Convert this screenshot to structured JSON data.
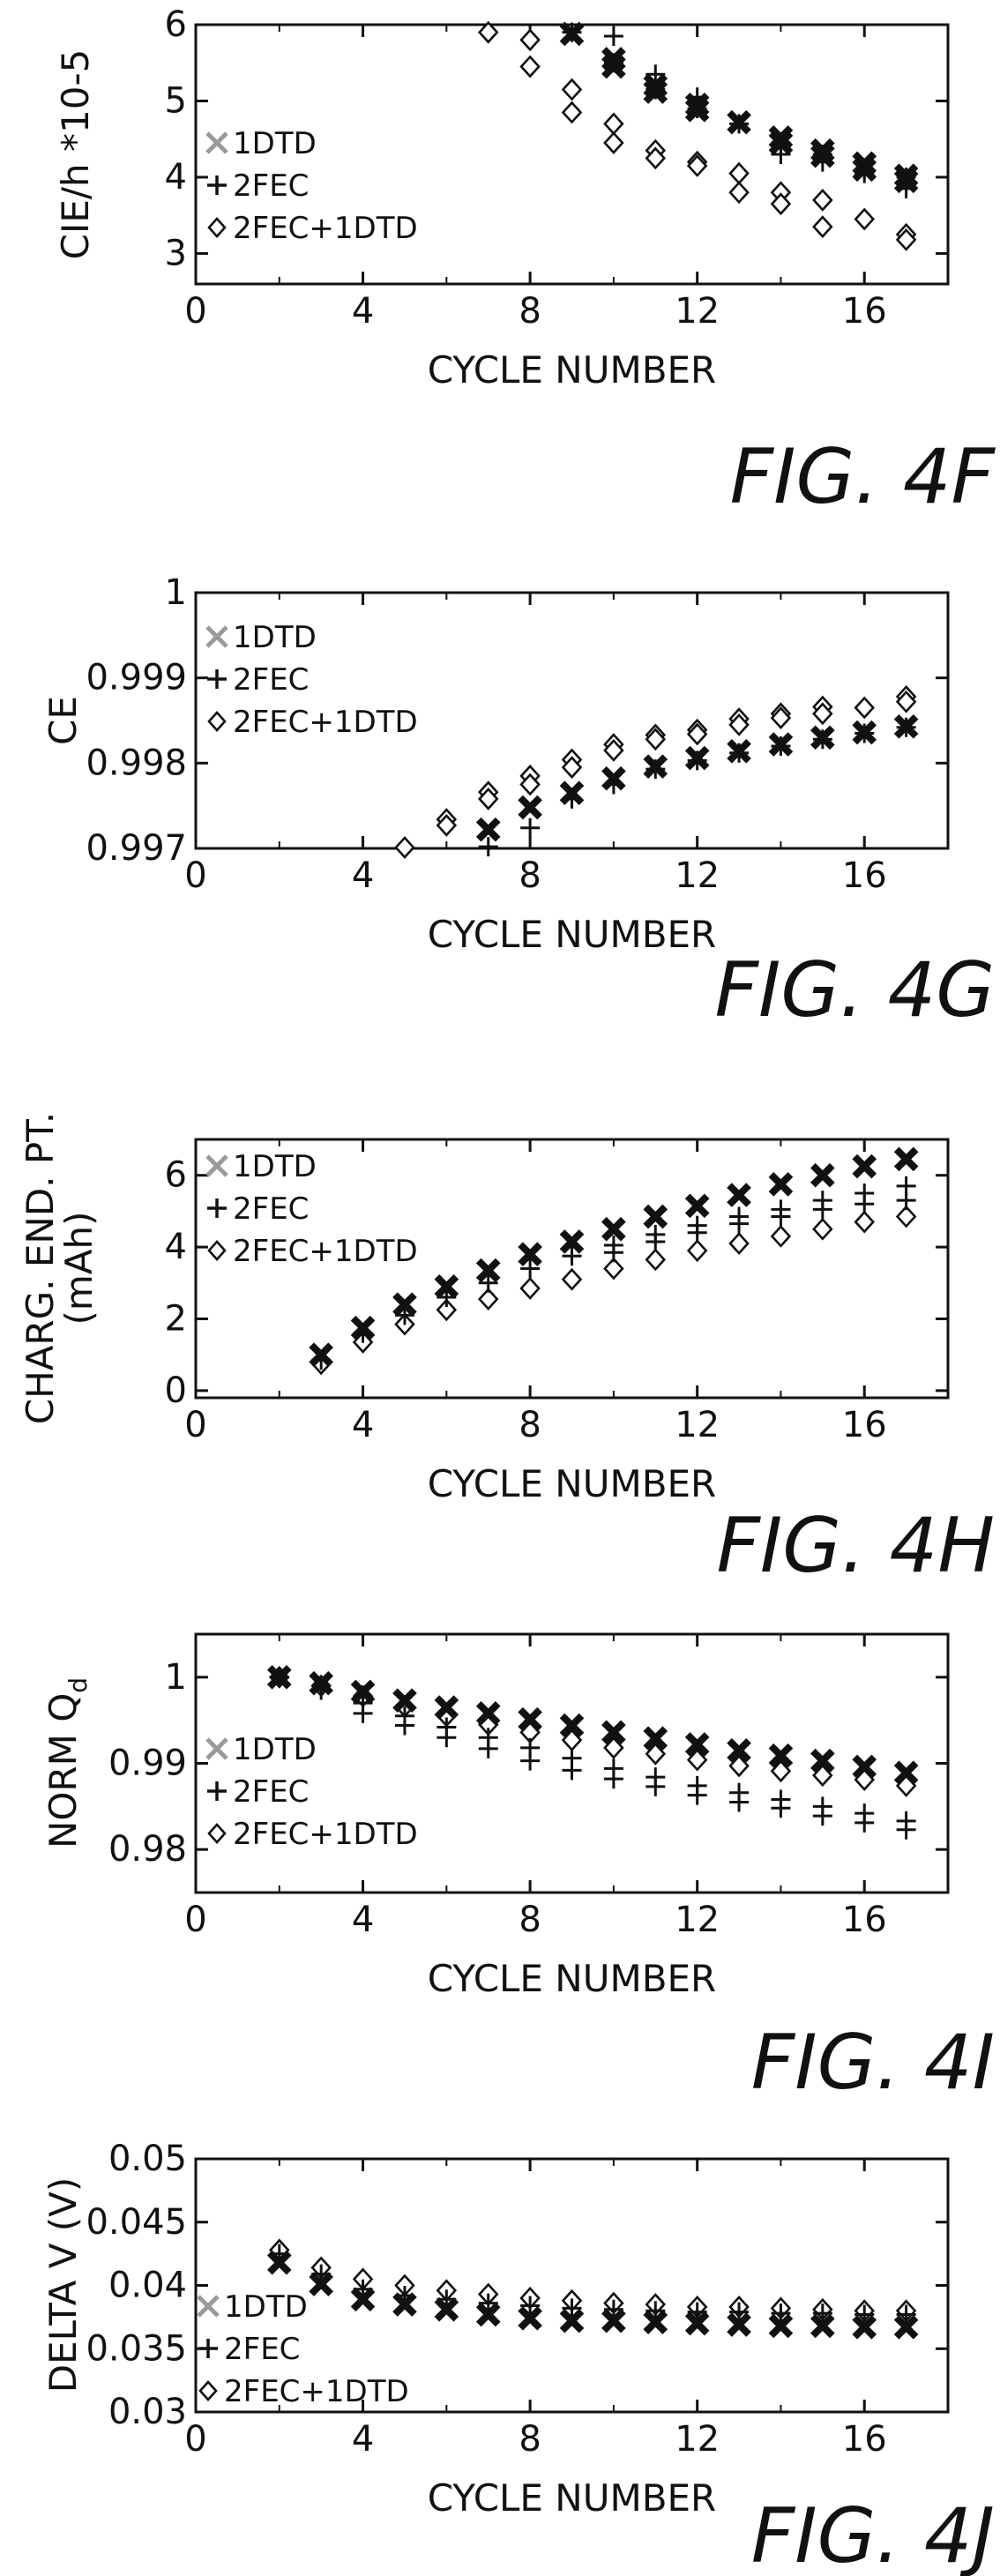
{
  "figure_captions": [
    "FIG. 4F",
    "FIG. 4G",
    "FIG. 4H",
    "FIG. 4I",
    "FIG. 4J"
  ],
  "chart_data": [
    {
      "type": "scatter",
      "caption": "FIG. 4F",
      "xlabel": "CYCLE NUMBER",
      "ylabel": "CIE/h *10-5",
      "xlim": [
        0,
        18
      ],
      "ylim": [
        2.6,
        6
      ],
      "xticks": [
        0,
        4,
        8,
        12,
        16
      ],
      "yticks": [
        3,
        4,
        5,
        6
      ],
      "ytick_labels": [
        "3",
        "4",
        "5",
        "6"
      ],
      "legend_position": "left",
      "series": [
        {
          "name": "1DTD",
          "marker": "x-gray",
          "x": [
            9,
            10,
            10,
            11,
            11,
            12,
            12,
            13,
            14,
            14,
            15,
            15,
            16,
            16,
            17,
            17
          ],
          "y": [
            5.88,
            5.55,
            5.45,
            5.2,
            5.12,
            4.95,
            4.88,
            4.72,
            4.52,
            4.45,
            4.35,
            4.28,
            4.18,
            4.1,
            4.02,
            3.95
          ]
        },
        {
          "name": "2FEC",
          "marker": "plus",
          "x": [
            9,
            10,
            10,
            11,
            11,
            12,
            12,
            13,
            14,
            14,
            15,
            15,
            16,
            16,
            17,
            17
          ],
          "y": [
            5.9,
            5.85,
            5.5,
            5.35,
            5.15,
            5.05,
            4.9,
            4.7,
            4.45,
            4.3,
            4.3,
            4.2,
            4.1,
            4.05,
            4.0,
            3.85
          ]
        },
        {
          "name": "2FEC+1DTD",
          "marker": "diamond",
          "x": [
            7,
            8,
            8,
            9,
            9,
            10,
            10,
            11,
            11,
            12,
            12,
            13,
            13,
            14,
            14,
            15,
            15,
            16,
            17,
            17
          ],
          "y": [
            5.9,
            5.8,
            5.45,
            5.15,
            4.85,
            4.7,
            4.45,
            4.35,
            4.25,
            4.2,
            4.15,
            4.05,
            3.8,
            3.8,
            3.65,
            3.7,
            3.35,
            3.45,
            3.25,
            3.18
          ]
        }
      ]
    },
    {
      "type": "scatter",
      "caption": "FIG. 4G",
      "xlabel": "CYCLE NUMBER",
      "ylabel": "CE",
      "xlim": [
        0,
        18
      ],
      "ylim": [
        0.997,
        1
      ],
      "xticks": [
        0,
        4,
        8,
        12,
        16
      ],
      "yticks": [
        0.997,
        0.998,
        0.999,
        1
      ],
      "ytick_labels": [
        "0.997",
        "0.998",
        "0.999",
        "1"
      ],
      "legend_position": "top-left",
      "series": [
        {
          "name": "1DTD",
          "marker": "x-gray",
          "x": [
            7,
            8,
            9,
            10,
            11,
            12,
            13,
            14,
            15,
            16,
            17
          ],
          "y": [
            0.99722,
            0.99748,
            0.99765,
            0.99782,
            0.99796,
            0.99806,
            0.99814,
            0.99822,
            0.9983,
            0.99836,
            0.99843
          ]
        },
        {
          "name": "2FEC",
          "marker": "plus",
          "x": [
            7,
            8,
            9,
            10,
            11,
            12,
            13,
            14,
            15,
            16,
            17
          ],
          "y": [
            0.99702,
            0.99724,
            0.99758,
            0.99775,
            0.99793,
            0.99803,
            0.99812,
            0.9982,
            0.99828,
            0.99835,
            0.99842
          ]
        },
        {
          "name": "2FEC+1DTD",
          "marker": "diamond",
          "x": [
            5,
            6,
            6,
            7,
            7,
            8,
            8,
            9,
            9,
            10,
            10,
            11,
            11,
            12,
            12,
            13,
            13,
            14,
            14,
            15,
            15,
            16,
            17,
            17
          ],
          "y": [
            0.99701,
            0.99734,
            0.99727,
            0.99766,
            0.99758,
            0.99785,
            0.99775,
            0.99804,
            0.99795,
            0.99822,
            0.99815,
            0.99833,
            0.99828,
            0.99839,
            0.99834,
            0.99852,
            0.99845,
            0.99858,
            0.99853,
            0.99866,
            0.99858,
            0.99865,
            0.99878,
            0.99872
          ]
        }
      ]
    },
    {
      "type": "scatter",
      "caption": "FIG. 4H",
      "xlabel": "CYCLE NUMBER",
      "ylabel": "CHARG. END. PT. (mAh)",
      "ylabel_lines": [
        "CHARG. END. PT.",
        "(mAh)"
      ],
      "xlim": [
        0,
        18
      ],
      "ylim": [
        -0.2,
        7
      ],
      "xticks": [
        0,
        4,
        8,
        12,
        16
      ],
      "yticks": [
        0,
        2,
        4,
        6
      ],
      "ytick_labels": [
        "0",
        "2",
        "4",
        "6"
      ],
      "legend_position": "top-left",
      "series": [
        {
          "name": "1DTD",
          "marker": "x-gray",
          "x": [
            3,
            4,
            5,
            6,
            7,
            8,
            9,
            10,
            11,
            12,
            13,
            14,
            15,
            16,
            17
          ],
          "y": [
            1.0,
            1.75,
            2.4,
            2.9,
            3.35,
            3.8,
            4.15,
            4.5,
            4.85,
            5.15,
            5.45,
            5.75,
            6.0,
            6.25,
            6.45
          ]
        },
        {
          "name": "2FEC",
          "marker": "plus",
          "x": [
            3,
            4,
            5,
            6,
            7,
            8,
            9,
            10,
            10,
            11,
            11,
            12,
            12,
            13,
            13,
            14,
            14,
            15,
            15,
            16,
            16,
            17,
            17
          ],
          "y": [
            0.85,
            1.6,
            2.1,
            2.6,
            3.0,
            3.4,
            3.75,
            4.05,
            3.85,
            4.35,
            4.15,
            4.6,
            4.4,
            4.85,
            4.65,
            5.05,
            4.85,
            5.3,
            5.05,
            5.5,
            5.2,
            5.7,
            5.3
          ]
        },
        {
          "name": "2FEC+1DTD",
          "marker": "diamond",
          "x": [
            3,
            4,
            5,
            6,
            7,
            8,
            9,
            10,
            11,
            12,
            13,
            14,
            15,
            16,
            17
          ],
          "y": [
            0.75,
            1.35,
            1.85,
            2.25,
            2.55,
            2.85,
            3.1,
            3.4,
            3.65,
            3.9,
            4.1,
            4.3,
            4.5,
            4.7,
            4.85
          ]
        }
      ]
    },
    {
      "type": "scatter",
      "caption": "FIG. 4I",
      "xlabel": "CYCLE NUMBER",
      "ylabel": "NORM Qd",
      "ylabel_main": "NORM Q",
      "ylabel_sub": "d",
      "xlim": [
        0,
        18
      ],
      "ylim": [
        0.975,
        1.005
      ],
      "xticks": [
        0,
        4,
        8,
        12,
        16
      ],
      "yticks": [
        0.98,
        0.99,
        1
      ],
      "ytick_labels": [
        "0.98",
        "0.99",
        "1"
      ],
      "legend_position": "left",
      "series": [
        {
          "name": "1DTD",
          "marker": "x-gray",
          "x": [
            2,
            3,
            4,
            5,
            6,
            7,
            8,
            9,
            10,
            11,
            12,
            13,
            14,
            15,
            16,
            17
          ],
          "y": [
            1.0,
            0.9993,
            0.9983,
            0.9973,
            0.9965,
            0.9958,
            0.9951,
            0.9944,
            0.9936,
            0.9929,
            0.9922,
            0.9915,
            0.9909,
            0.9903,
            0.9896,
            0.9889
          ]
        },
        {
          "name": "2FEC",
          "marker": "plus",
          "x": [
            2,
            3,
            4,
            4,
            5,
            5,
            6,
            6,
            7,
            7,
            8,
            8,
            9,
            9,
            10,
            10,
            11,
            11,
            12,
            12,
            13,
            13,
            14,
            14,
            15,
            15,
            16,
            16,
            17,
            17
          ],
          "y": [
            1.0,
            0.9985,
            0.997,
            0.9958,
            0.9955,
            0.9944,
            0.9942,
            0.993,
            0.993,
            0.9917,
            0.9918,
            0.9903,
            0.9906,
            0.9892,
            0.9894,
            0.9882,
            0.9884,
            0.9873,
            0.9874,
            0.9863,
            0.9866,
            0.9855,
            0.9858,
            0.9848,
            0.985,
            0.9839,
            0.9842,
            0.9831,
            0.9833,
            0.9823
          ]
        },
        {
          "name": "2FEC+1DTD",
          "marker": "diamond",
          "x": [
            2,
            3,
            4,
            5,
            6,
            7,
            8,
            9,
            10,
            11,
            12,
            13,
            14,
            15,
            16,
            17
          ],
          "y": [
            1.0,
            0.999,
            0.9978,
            0.9966,
            0.9955,
            0.9945,
            0.9936,
            0.9927,
            0.9918,
            0.9911,
            0.9904,
            0.9897,
            0.9891,
            0.9886,
            0.9881,
            0.9874
          ]
        }
      ]
    },
    {
      "type": "scatter",
      "caption": "FIG. 4J",
      "xlabel": "CYCLE NUMBER",
      "ylabel": "DELTA V (V)",
      "xlim": [
        0,
        18
      ],
      "ylim": [
        0.03,
        0.05
      ],
      "xticks": [
        0,
        4,
        8,
        12,
        16
      ],
      "yticks": [
        0.03,
        0.035,
        0.04,
        0.045,
        0.05
      ],
      "ytick_labels": [
        "0.03",
        "0.035",
        "0.04",
        "0.045",
        "0.05"
      ],
      "legend_position": "left",
      "series": [
        {
          "name": "1DTD",
          "marker": "x-gray",
          "x": [
            2,
            3,
            4,
            5,
            6,
            7,
            8,
            9,
            10,
            11,
            12,
            13,
            14,
            15,
            16,
            17
          ],
          "y": [
            0.0418,
            0.0401,
            0.0389,
            0.0385,
            0.0381,
            0.0377,
            0.0374,
            0.0372,
            0.0372,
            0.0371,
            0.037,
            0.0369,
            0.0368,
            0.0368,
            0.0367,
            0.0367
          ]
        },
        {
          "name": "2FEC",
          "marker": "plus",
          "x": [
            2,
            3,
            4,
            5,
            6,
            7,
            8,
            9,
            10,
            11,
            12,
            13,
            14,
            15,
            16,
            17
          ],
          "y": [
            0.0425,
            0.0409,
            0.0397,
            0.0392,
            0.0389,
            0.0386,
            0.0384,
            0.0382,
            0.0381,
            0.038,
            0.0379,
            0.0379,
            0.0378,
            0.0378,
            0.0377,
            0.0377
          ]
        },
        {
          "name": "2FEC+1DTD",
          "marker": "diamond",
          "x": [
            2,
            3,
            4,
            5,
            6,
            7,
            8,
            9,
            10,
            11,
            12,
            13,
            14,
            15,
            16,
            17
          ],
          "y": [
            0.0428,
            0.0414,
            0.0405,
            0.04,
            0.0396,
            0.0393,
            0.039,
            0.0388,
            0.0386,
            0.0385,
            0.0383,
            0.0383,
            0.0382,
            0.0381,
            0.038,
            0.038
          ]
        }
      ]
    }
  ]
}
